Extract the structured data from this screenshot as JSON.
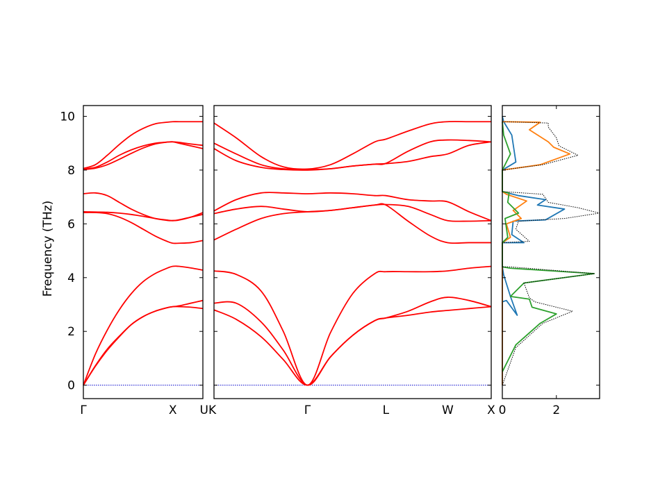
{
  "figure": {
    "ylabel": "Frequency (THz)",
    "y_ticks": [
      "0",
      "2",
      "4",
      "6",
      "8",
      "10"
    ],
    "dos_ticks": [
      "0",
      "2"
    ]
  },
  "chart_data": [
    {
      "type": "line",
      "panel": "band-structure-left",
      "path_labels": [
        "Γ",
        "X",
        "U"
      ],
      "path_label_positions": [
        0,
        0.748,
        1
      ],
      "ylim": [
        -0.5,
        10.4
      ],
      "xlim": [
        0,
        1
      ],
      "zero_line_color": "#0000cc",
      "band_color": "#ff0000",
      "series": [
        {
          "x": [
            0,
            0.1,
            0.2,
            0.3,
            0.4,
            0.5,
            0.6,
            0.7,
            0.748,
            0.8,
            0.9,
            1
          ],
          "values": [
            0,
            0.7,
            1.3,
            1.8,
            2.25,
            2.55,
            2.75,
            2.88,
            2.92,
            2.92,
            2.9,
            2.85
          ]
        },
        {
          "x": [
            0,
            0.1,
            0.2,
            0.3,
            0.4,
            0.5,
            0.6,
            0.7,
            0.748,
            0.8,
            0.9,
            1
          ],
          "values": [
            0,
            0.72,
            1.34,
            1.82,
            2.25,
            2.55,
            2.75,
            2.88,
            2.92,
            2.95,
            3.05,
            3.15
          ]
        },
        {
          "x": [
            0,
            0.1,
            0.2,
            0.3,
            0.4,
            0.5,
            0.6,
            0.7,
            0.748,
            0.8,
            0.9,
            1
          ],
          "values": [
            0,
            1.15,
            2.05,
            2.8,
            3.4,
            3.85,
            4.15,
            4.35,
            4.42,
            4.42,
            4.36,
            4.28
          ]
        },
        {
          "x": [
            0,
            0.1,
            0.2,
            0.3,
            0.4,
            0.5,
            0.6,
            0.7,
            0.748,
            0.8,
            0.9,
            1
          ],
          "values": [
            6.42,
            6.42,
            6.38,
            6.25,
            6.05,
            5.8,
            5.55,
            5.35,
            5.28,
            5.28,
            5.3,
            5.38
          ]
        },
        {
          "x": [
            0,
            0.1,
            0.2,
            0.3,
            0.4,
            0.5,
            0.6,
            0.7,
            0.748,
            0.8,
            0.9,
            1
          ],
          "values": [
            6.45,
            6.44,
            6.43,
            6.4,
            6.35,
            6.28,
            6.2,
            6.14,
            6.12,
            6.14,
            6.25,
            6.42
          ]
        },
        {
          "x": [
            0,
            0.1,
            0.2,
            0.3,
            0.4,
            0.5,
            0.6,
            0.7,
            0.748,
            0.8,
            0.9,
            1
          ],
          "values": [
            7.12,
            7.15,
            7.05,
            6.8,
            6.55,
            6.35,
            6.2,
            6.13,
            6.12,
            6.15,
            6.25,
            6.35
          ]
        },
        {
          "x": [
            0,
            0.1,
            0.2,
            0.3,
            0.4,
            0.5,
            0.6,
            0.7,
            0.748,
            0.8,
            0.9,
            1
          ],
          "values": [
            8.02,
            8.07,
            8.2,
            8.4,
            8.62,
            8.82,
            8.97,
            9.04,
            9.05,
            9.03,
            8.97,
            8.92
          ]
        },
        {
          "x": [
            0,
            0.1,
            0.2,
            0.3,
            0.4,
            0.5,
            0.6,
            0.7,
            0.748,
            0.8,
            0.9,
            1
          ],
          "values": [
            8.04,
            8.1,
            8.3,
            8.55,
            8.75,
            8.9,
            9.0,
            9.04,
            9.05,
            9.0,
            8.9,
            8.8
          ]
        },
        {
          "x": [
            0,
            0.1,
            0.2,
            0.3,
            0.4,
            0.5,
            0.6,
            0.7,
            0.748,
            0.8,
            0.9,
            1
          ],
          "values": [
            8.06,
            8.2,
            8.55,
            8.95,
            9.3,
            9.55,
            9.72,
            9.78,
            9.8,
            9.8,
            9.8,
            9.8
          ]
        }
      ]
    },
    {
      "type": "line",
      "panel": "band-structure-main",
      "path_labels": [
        "K",
        "Γ",
        "L",
        "W",
        "X"
      ],
      "path_label_positions": [
        0,
        0.337,
        0.62,
        0.843,
        1
      ],
      "ylim": [
        -0.5,
        10.4
      ],
      "xlim": [
        0,
        1
      ],
      "zero_line_color": "#0000cc",
      "band_color": "#ff0000",
      "series": [
        {
          "x": [
            0,
            0.08,
            0.17,
            0.25,
            0.337,
            0.42,
            0.5,
            0.58,
            0.62,
            0.7,
            0.78,
            0.843,
            0.92,
            1
          ],
          "values": [
            2.8,
            2.45,
            1.8,
            0.95,
            0,
            1.05,
            1.85,
            2.4,
            2.5,
            2.6,
            2.72,
            2.78,
            2.85,
            2.92
          ]
        },
        {
          "x": [
            0,
            0.08,
            0.17,
            0.25,
            0.337,
            0.42,
            0.5,
            0.58,
            0.62,
            0.7,
            0.78,
            0.843,
            0.92,
            1
          ],
          "values": [
            3.05,
            3.05,
            2.35,
            1.3,
            0,
            1.05,
            1.85,
            2.4,
            2.5,
            2.75,
            3.1,
            3.27,
            3.15,
            2.92
          ]
        },
        {
          "x": [
            0,
            0.08,
            0.17,
            0.25,
            0.337,
            0.42,
            0.5,
            0.58,
            0.62,
            0.7,
            0.78,
            0.843,
            0.92,
            1
          ],
          "values": [
            4.25,
            4.12,
            3.5,
            2.0,
            0,
            1.95,
            3.4,
            4.15,
            4.22,
            4.22,
            4.22,
            4.25,
            4.35,
            4.42
          ]
        },
        {
          "x": [
            0,
            0.08,
            0.17,
            0.25,
            0.337,
            0.42,
            0.5,
            0.58,
            0.62,
            0.7,
            0.78,
            0.843,
            0.92,
            1
          ],
          "values": [
            5.4,
            5.8,
            6.2,
            6.38,
            6.45,
            6.5,
            6.6,
            6.7,
            6.7,
            6.1,
            5.55,
            5.3,
            5.3,
            5.3
          ]
        },
        {
          "x": [
            0,
            0.08,
            0.17,
            0.25,
            0.337,
            0.42,
            0.5,
            0.58,
            0.62,
            0.7,
            0.78,
            0.843,
            0.92,
            1
          ],
          "values": [
            6.38,
            6.55,
            6.65,
            6.55,
            6.45,
            6.5,
            6.6,
            6.7,
            6.72,
            6.65,
            6.35,
            6.12,
            6.1,
            6.12
          ]
        },
        {
          "x": [
            0,
            0.08,
            0.17,
            0.25,
            0.337,
            0.42,
            0.5,
            0.58,
            0.62,
            0.7,
            0.78,
            0.843,
            0.92,
            1
          ],
          "values": [
            6.48,
            6.9,
            7.15,
            7.15,
            7.12,
            7.15,
            7.12,
            7.05,
            7.05,
            6.9,
            6.85,
            6.82,
            6.45,
            6.12
          ]
        },
        {
          "x": [
            0,
            0.08,
            0.17,
            0.25,
            0.337,
            0.42,
            0.5,
            0.58,
            0.62,
            0.7,
            0.78,
            0.843,
            0.92,
            1
          ],
          "values": [
            8.8,
            8.35,
            8.1,
            8.02,
            8.0,
            8.05,
            8.15,
            8.22,
            8.24,
            8.32,
            8.5,
            8.6,
            8.92,
            9.05
          ]
        },
        {
          "x": [
            0,
            0.08,
            0.17,
            0.25,
            0.337,
            0.42,
            0.5,
            0.58,
            0.62,
            0.7,
            0.78,
            0.843,
            0.92,
            1
          ],
          "values": [
            9.0,
            8.6,
            8.2,
            8.05,
            8.02,
            8.05,
            8.15,
            8.22,
            8.25,
            8.7,
            9.05,
            9.12,
            9.1,
            9.05
          ]
        },
        {
          "x": [
            0,
            0.08,
            0.17,
            0.25,
            0.337,
            0.42,
            0.5,
            0.58,
            0.62,
            0.7,
            0.78,
            0.843,
            0.92,
            1
          ],
          "values": [
            9.75,
            9.2,
            8.5,
            8.12,
            8.04,
            8.2,
            8.6,
            9.05,
            9.15,
            9.45,
            9.72,
            9.8,
            9.8,
            9.8
          ]
        }
      ]
    },
    {
      "type": "line",
      "panel": "partial-dos",
      "orientation": "horizontal",
      "xlim": [
        0,
        3.6
      ],
      "ylim": [
        -0.5,
        10.4
      ],
      "series": [
        {
          "color": "#1f77b4",
          "style": "solid",
          "points": [
            [
              0,
              0
            ],
            [
              0,
              3.1
            ],
            [
              0.15,
              3.15
            ],
            [
              0.55,
              2.6
            ],
            [
              0.3,
              3.3
            ],
            [
              0.05,
              4.1
            ],
            [
              0,
              4.4
            ],
            [
              0,
              5.3
            ],
            [
              0.8,
              5.3
            ],
            [
              0.35,
              5.6
            ],
            [
              0.4,
              6.1
            ],
            [
              1.6,
              6.15
            ],
            [
              2.3,
              6.55
            ],
            [
              1.3,
              6.7
            ],
            [
              1.6,
              6.9
            ],
            [
              0.6,
              7.05
            ],
            [
              0,
              7.2
            ],
            [
              0,
              8.0
            ],
            [
              0.5,
              8.3
            ],
            [
              0.35,
              9.3
            ],
            [
              0.05,
              9.8
            ],
            [
              0,
              10
            ]
          ]
        },
        {
          "color": "#ff7f0e",
          "style": "solid",
          "points": [
            [
              0,
              0
            ],
            [
              0,
              4.4
            ],
            [
              0,
              5.3
            ],
            [
              0.3,
              5.5
            ],
            [
              0.15,
              6.0
            ],
            [
              0.7,
              6.2
            ],
            [
              0.4,
              6.5
            ],
            [
              0.9,
              6.85
            ],
            [
              0.15,
              7.1
            ],
            [
              0,
              7.2
            ],
            [
              0,
              8.0
            ],
            [
              1.4,
              8.2
            ],
            [
              2.5,
              8.6
            ],
            [
              1.9,
              8.85
            ],
            [
              1.7,
              9.05
            ],
            [
              1.0,
              9.5
            ],
            [
              1.4,
              9.78
            ],
            [
              0,
              9.8
            ]
          ]
        },
        {
          "color": "#2ca02c",
          "style": "solid",
          "points": [
            [
              0,
              0.5
            ],
            [
              0.5,
              1.5
            ],
            [
              1.4,
              2.3
            ],
            [
              2.0,
              2.65
            ],
            [
              1.1,
              2.9
            ],
            [
              1.0,
              3.2
            ],
            [
              0.3,
              3.3
            ],
            [
              0.8,
              3.8
            ],
            [
              3.4,
              4.15
            ],
            [
              0.3,
              4.35
            ],
            [
              0,
              4.4
            ],
            [
              0,
              5.3
            ],
            [
              0.2,
              5.5
            ],
            [
              0.1,
              6.2
            ],
            [
              0.6,
              6.4
            ],
            [
              0.2,
              6.8
            ],
            [
              0.25,
              7.15
            ],
            [
              0,
              7.2
            ],
            [
              0,
              8.0
            ],
            [
              0.3,
              8.6
            ],
            [
              0.05,
              9.3
            ],
            [
              0,
              9.8
            ]
          ]
        },
        {
          "color": "#000000",
          "style": "dotted",
          "points": [
            [
              0,
              0
            ],
            [
              0.5,
              1.4
            ],
            [
              1.5,
              2.3
            ],
            [
              2.6,
              2.75
            ],
            [
              1.2,
              3.1
            ],
            [
              1.0,
              3.25
            ],
            [
              0.8,
              3.8
            ],
            [
              3.4,
              4.15
            ],
            [
              0.3,
              4.4
            ],
            [
              0,
              4.4
            ],
            [
              0,
              5.3
            ],
            [
              1.0,
              5.35
            ],
            [
              0.5,
              5.8
            ],
            [
              0.6,
              6.1
            ],
            [
              2.3,
              6.2
            ],
            [
              3.6,
              6.4
            ],
            [
              2.8,
              6.6
            ],
            [
              1.7,
              6.8
            ],
            [
              1.5,
              7.1
            ],
            [
              0,
              7.2
            ],
            [
              0,
              8.0
            ],
            [
              1.5,
              8.2
            ],
            [
              2.8,
              8.55
            ],
            [
              2.1,
              8.9
            ],
            [
              2.0,
              9.2
            ],
            [
              1.7,
              9.6
            ],
            [
              1.7,
              9.75
            ],
            [
              0,
              9.8
            ]
          ]
        }
      ]
    }
  ]
}
